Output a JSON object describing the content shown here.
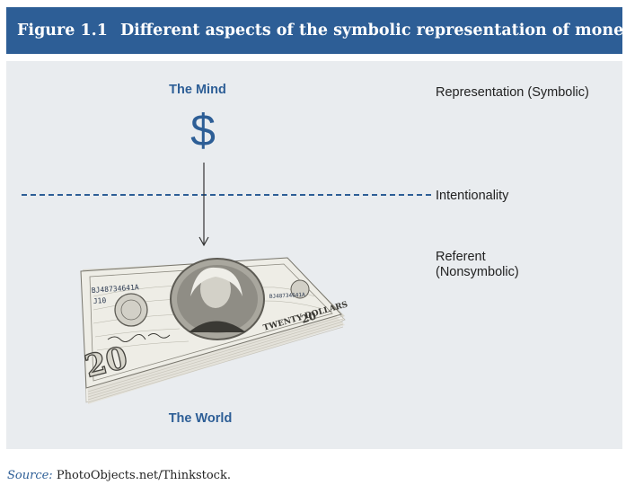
{
  "figure": {
    "number": "Figure 1.1",
    "title": "Different aspects of the symbolic representation of money."
  },
  "diagram": {
    "top_label": "The Mind",
    "symbol": "$",
    "bottom_label": "The World",
    "levels": {
      "representation": "Representation (Symbolic)",
      "intentionality": "Intentionality",
      "referent_line1": "Referent",
      "referent_line2": "(Nonsymbolic)"
    },
    "banknote": {
      "serial": "BJ48734641A",
      "series_code": "J10",
      "serial_right": "BJ48734641A",
      "denomination_words": "TWENTY DOLLARS",
      "denomination_number": "20"
    }
  },
  "source": {
    "label": "Source:",
    "text": "PhotoObjects.net/Thinkstock."
  },
  "colors": {
    "accent": "#2d5e96",
    "panel": "#e9ecef",
    "text": "#222222"
  }
}
